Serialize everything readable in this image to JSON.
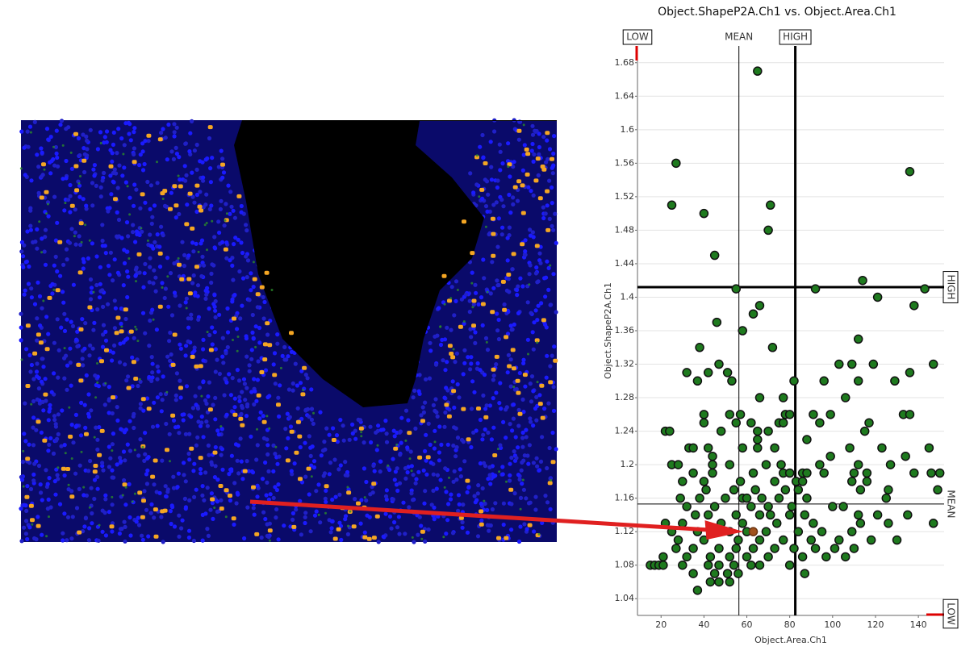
{
  "chart_data": {
    "type": "scatter",
    "title": "Object.ShapeP2A.Ch1 vs. Object.Area.Ch1",
    "x_label": "Object.Area.Ch1",
    "y_label": "Object.ShapeP2A.Ch1",
    "xlim": [
      9,
      152
    ],
    "ylim": [
      1.02,
      1.7
    ],
    "xticks": [
      20,
      40,
      60,
      80,
      100,
      120,
      140
    ],
    "yticks": [
      1.04,
      1.08,
      1.12,
      1.16,
      1.2,
      1.24,
      1.28,
      1.32,
      1.36,
      1.4,
      1.44,
      1.48,
      1.52,
      1.56,
      1.6,
      1.64,
      1.68
    ],
    "grid": true,
    "color": "#1e7a1e",
    "x": [
      65,
      27,
      136,
      25,
      71,
      40,
      70,
      45,
      55,
      92,
      114,
      121,
      143,
      138,
      66,
      63,
      46,
      58,
      112,
      72,
      38,
      47,
      42,
      32,
      51,
      53,
      37,
      103,
      109,
      119,
      136,
      147,
      96,
      112,
      129,
      82,
      66,
      77,
      106,
      40,
      52,
      57,
      78,
      80,
      91,
      99,
      133,
      136,
      40,
      55,
      62,
      75,
      77,
      94,
      117,
      22,
      24,
      48,
      65,
      70,
      115,
      65,
      88,
      42,
      33,
      35,
      58,
      65,
      73,
      108,
      123,
      145,
      44,
      99,
      134,
      25,
      28,
      44,
      52,
      69,
      76,
      94,
      112,
      127,
      35,
      44,
      63,
      77,
      80,
      86,
      88,
      96,
      110,
      116,
      138,
      146,
      150,
      30,
      40,
      57,
      73,
      83,
      86,
      109,
      116,
      41,
      54,
      64,
      78,
      84,
      113,
      126,
      149,
      29,
      38,
      50,
      58,
      60,
      67,
      75,
      88,
      125,
      32,
      45,
      62,
      70,
      81,
      100,
      105,
      36,
      42,
      55,
      66,
      71,
      80,
      87,
      112,
      121,
      135,
      22,
      30,
      48,
      58,
      74,
      91,
      113,
      126,
      147,
      25,
      37,
      52,
      60,
      69,
      84,
      95,
      109,
      28,
      40,
      56,
      66,
      77,
      90,
      103,
      118,
      130,
      27,
      35,
      47,
      55,
      63,
      73,
      82,
      92,
      101,
      110,
      21,
      32,
      43,
      52,
      60,
      70,
      86,
      97,
      106,
      15,
      17,
      19,
      21,
      30,
      42,
      47,
      54,
      62,
      66,
      80,
      35,
      45,
      51,
      56,
      87,
      43,
      47,
      52,
      37
    ],
    "values": [
      1.67,
      1.56,
      1.55,
      1.51,
      1.51,
      1.5,
      1.48,
      1.45,
      1.41,
      1.41,
      1.42,
      1.4,
      1.41,
      1.39,
      1.39,
      1.38,
      1.37,
      1.36,
      1.35,
      1.34,
      1.34,
      1.32,
      1.31,
      1.31,
      1.31,
      1.3,
      1.3,
      1.32,
      1.32,
      1.32,
      1.31,
      1.32,
      1.3,
      1.3,
      1.3,
      1.3,
      1.28,
      1.28,
      1.28,
      1.26,
      1.26,
      1.26,
      1.26,
      1.26,
      1.26,
      1.26,
      1.26,
      1.26,
      1.25,
      1.25,
      1.25,
      1.25,
      1.25,
      1.25,
      1.25,
      1.24,
      1.24,
      1.24,
      1.24,
      1.24,
      1.24,
      1.23,
      1.23,
      1.22,
      1.22,
      1.22,
      1.22,
      1.22,
      1.22,
      1.22,
      1.22,
      1.22,
      1.21,
      1.21,
      1.21,
      1.2,
      1.2,
      1.2,
      1.2,
      1.2,
      1.2,
      1.2,
      1.2,
      1.2,
      1.19,
      1.19,
      1.19,
      1.19,
      1.19,
      1.19,
      1.19,
      1.19,
      1.19,
      1.19,
      1.19,
      1.19,
      1.19,
      1.18,
      1.18,
      1.18,
      1.18,
      1.18,
      1.18,
      1.18,
      1.18,
      1.17,
      1.17,
      1.17,
      1.17,
      1.17,
      1.17,
      1.17,
      1.17,
      1.16,
      1.16,
      1.16,
      1.16,
      1.16,
      1.16,
      1.16,
      1.16,
      1.16,
      1.15,
      1.15,
      1.15,
      1.15,
      1.15,
      1.15,
      1.15,
      1.14,
      1.14,
      1.14,
      1.14,
      1.14,
      1.14,
      1.14,
      1.14,
      1.14,
      1.14,
      1.13,
      1.13,
      1.13,
      1.13,
      1.13,
      1.13,
      1.13,
      1.13,
      1.13,
      1.12,
      1.12,
      1.12,
      1.12,
      1.12,
      1.12,
      1.12,
      1.12,
      1.11,
      1.11,
      1.11,
      1.11,
      1.11,
      1.11,
      1.11,
      1.11,
      1.11,
      1.1,
      1.1,
      1.1,
      1.1,
      1.1,
      1.1,
      1.1,
      1.1,
      1.1,
      1.1,
      1.09,
      1.09,
      1.09,
      1.09,
      1.09,
      1.09,
      1.09,
      1.09,
      1.09,
      1.08,
      1.08,
      1.08,
      1.08,
      1.08,
      1.08,
      1.08,
      1.08,
      1.08,
      1.08,
      1.08,
      1.07,
      1.07,
      1.07,
      1.07,
      1.07,
      1.06,
      1.06,
      1.06,
      1.05
    ],
    "highlight": {
      "x": 63,
      "value": 1.12,
      "color": "#a0521d"
    },
    "x_gates": [
      {
        "label": "LOW",
        "value": 9
      },
      {
        "label": "MEAN",
        "value": 56.3
      },
      {
        "label": "HIGH",
        "value": 82.6
      }
    ],
    "y_gates": [
      {
        "label": "LOW",
        "value": 1.02
      },
      {
        "label": "MEAN",
        "value": 1.153
      },
      {
        "label": "HIGH",
        "value": 1.412
      }
    ]
  }
}
